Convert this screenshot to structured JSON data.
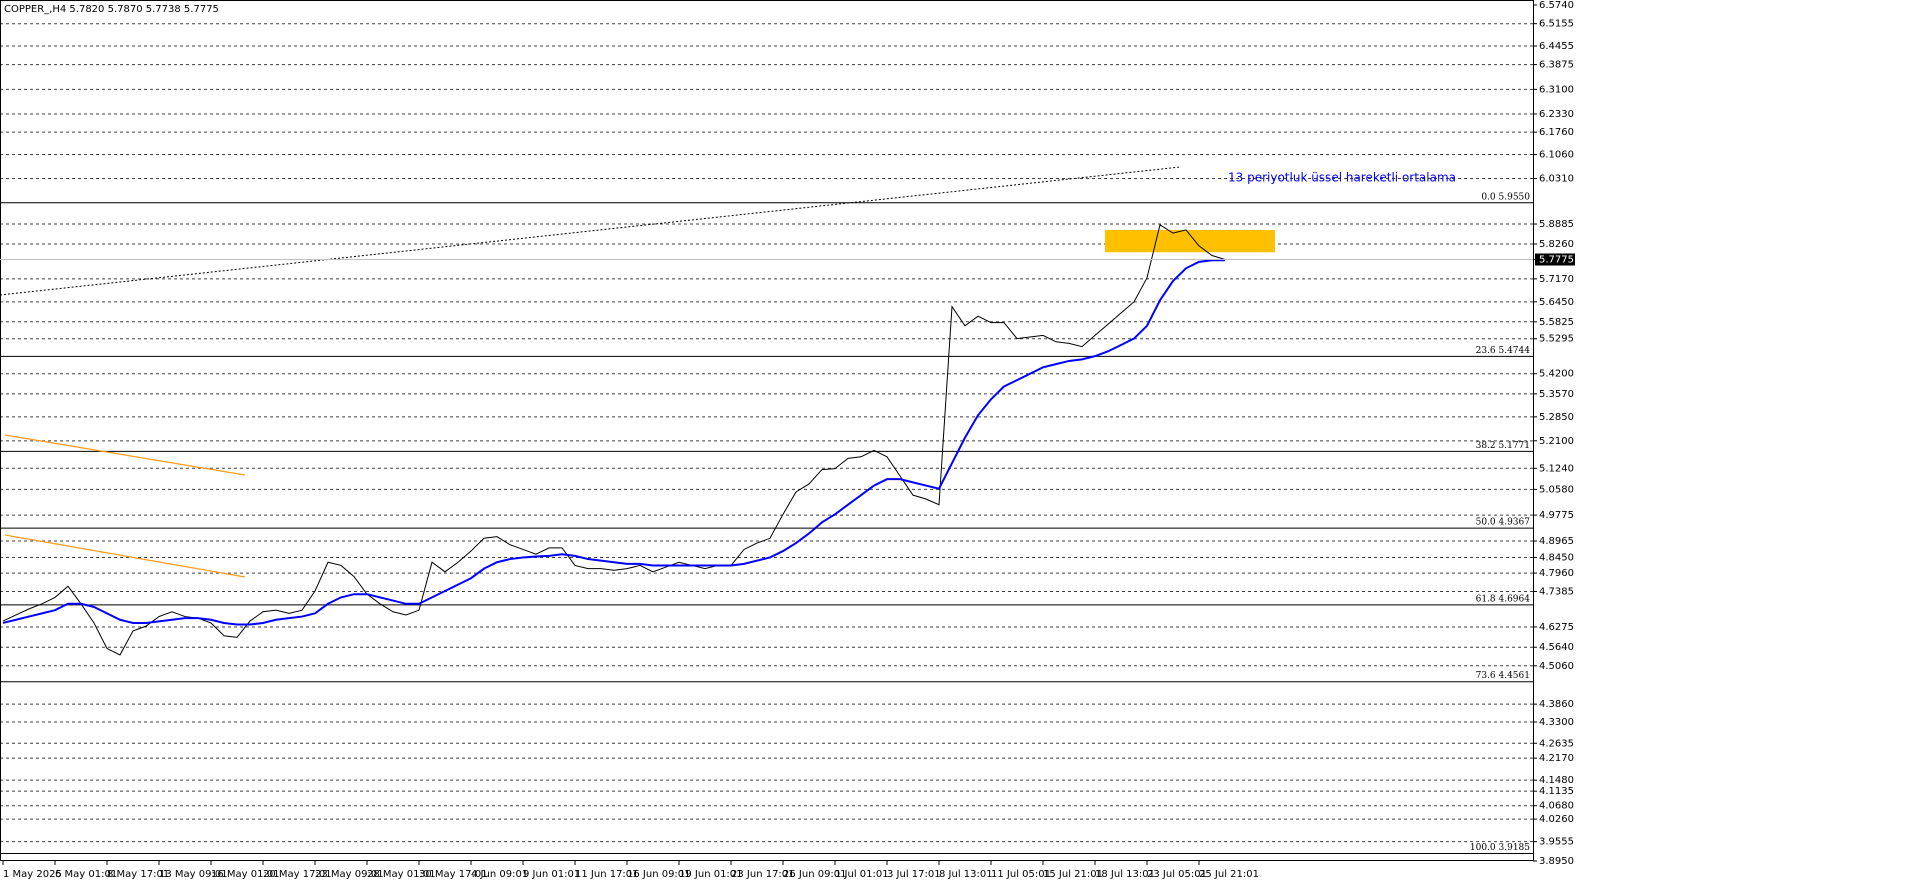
{
  "chart_data": {
    "type": "line",
    "title": "COPPER_,H4  5.7820 5.7870 5.7738 5.7775",
    "annotation": "13 periyotluk üssel hareketli ortalama",
    "categories": [
      "1 May 2025",
      null,
      null,
      null,
      "6 May 01:01",
      null,
      null,
      null,
      "8 May 17:01",
      null,
      null,
      null,
      "13 May 09:01",
      null,
      null,
      null,
      "16 May 01:01",
      null,
      null,
      null,
      "20 May 17:01",
      null,
      null,
      null,
      "23 May 09:01",
      null,
      null,
      null,
      "28 May 01:01",
      null,
      null,
      null,
      "30 May 17:01",
      null,
      null,
      null,
      "4 Jun 09:01",
      null,
      null,
      null,
      "9 Jun 01:01",
      null,
      null,
      null,
      "11 Jun 17:01",
      null,
      null,
      null,
      "16 Jun 09:01",
      null,
      null,
      null,
      "19 Jun 01:01",
      null,
      null,
      null,
      "23 Jun 17:01",
      null,
      null,
      null,
      "26 Jun 09:01",
      null,
      null,
      null,
      "1 Jul 01:01",
      null,
      null,
      null,
      "3 Jul 17:01",
      null,
      null,
      null,
      "8 Jul 13:01",
      null,
      null,
      null,
      "11 Jul 05:01",
      null,
      null,
      null,
      "15 Jul 21:01",
      null,
      null,
      null,
      "18 Jul 13:01",
      null,
      null,
      null,
      "23 Jul 05:01",
      null,
      null,
      null,
      "25 Jul 21:01",
      null,
      null
    ],
    "series": [
      {
        "name": "COPPER_",
        "color": "#000000",
        "values": [
          4.646,
          4.665,
          4.684,
          4.7,
          4.72,
          4.755,
          4.7,
          4.64,
          4.56,
          4.54,
          4.615,
          4.63,
          4.66,
          4.675,
          4.66,
          4.655,
          4.64,
          4.6,
          4.595,
          4.646,
          4.675,
          4.68,
          4.67,
          4.68,
          4.74,
          4.83,
          4.82,
          4.785,
          4.73,
          4.7,
          4.675,
          4.665,
          4.68,
          4.83,
          4.8,
          4.83,
          4.865,
          4.905,
          4.91,
          4.885,
          4.87,
          4.855,
          4.875,
          4.875,
          4.82,
          4.81,
          4.81,
          4.805,
          4.81,
          4.82,
          4.8,
          4.815,
          4.83,
          4.82,
          4.81,
          4.82,
          4.82,
          4.87,
          4.89,
          4.905,
          4.98,
          5.05,
          5.075,
          5.12,
          5.123,
          5.155,
          5.16,
          5.18,
          5.16,
          5.1,
          5.04,
          5.028,
          5.01,
          5.63,
          5.57,
          5.6,
          5.58,
          5.58,
          5.53,
          5.535,
          5.54,
          5.52,
          5.515,
          5.505,
          5.54,
          5.575,
          5.61,
          5.645,
          5.72,
          5.886,
          5.86,
          5.87,
          5.82,
          5.79,
          5.7775
        ]
      },
      {
        "name": "EMA 13",
        "color": "#0000ff",
        "values": [
          4.64,
          4.65,
          4.66,
          4.67,
          4.68,
          4.7,
          4.7,
          4.69,
          4.67,
          4.65,
          4.64,
          4.64,
          4.645,
          4.65,
          4.655,
          4.655,
          4.65,
          4.64,
          4.635,
          4.635,
          4.64,
          4.65,
          4.655,
          4.66,
          4.67,
          4.7,
          4.72,
          4.73,
          4.73,
          4.72,
          4.71,
          4.7,
          4.7,
          4.72,
          4.74,
          4.76,
          4.78,
          4.81,
          4.83,
          4.84,
          4.845,
          4.848,
          4.85,
          4.855,
          4.85,
          4.84,
          4.835,
          4.83,
          4.825,
          4.825,
          4.82,
          4.82,
          4.82,
          4.82,
          4.82,
          4.82,
          4.82,
          4.825,
          4.835,
          4.845,
          4.865,
          4.89,
          4.92,
          4.955,
          4.98,
          5.01,
          5.04,
          5.07,
          5.09,
          5.09,
          5.08,
          5.07,
          5.06,
          5.14,
          5.22,
          5.29,
          5.34,
          5.38,
          5.4,
          5.42,
          5.44,
          5.45,
          5.46,
          5.465,
          5.475,
          5.49,
          5.51,
          5.53,
          5.57,
          5.65,
          5.71,
          5.75,
          5.77,
          5.775,
          5.775
        ]
      }
    ],
    "ylim": [
      3.895,
      6.574
    ],
    "yticks": [
      {
        "value": 6.574,
        "label": "6.5740"
      },
      6.5155,
      6.4455,
      6.3875,
      {
        "value": 6.31,
        "label": "6.3100"
      },
      {
        "value": 6.233,
        "label": "6.2330"
      },
      {
        "value": 6.176,
        "label": "6.1760"
      },
      {
        "value": 6.106,
        "label": "6.1060"
      },
      {
        "value": 6.031,
        "label": "6.0310"
      },
      5.8885,
      {
        "value": 5.826,
        "label": "5.8260"
      },
      5.7775,
      {
        "value": 5.717,
        "label": "5.7170"
      },
      {
        "value": 5.645,
        "label": "5.6450"
      },
      5.5825,
      5.5295,
      {
        "value": 5.42,
        "label": "5.4200"
      },
      {
        "value": 5.357,
        "label": "5.3570"
      },
      {
        "value": 5.285,
        "label": "5.2850"
      },
      {
        "value": 5.21,
        "label": "5.2100"
      },
      {
        "value": 5.124,
        "label": "5.1240"
      },
      {
        "value": 5.058,
        "label": "5.0580"
      },
      4.9775,
      4.8965,
      {
        "value": 4.845,
        "label": "4.8450"
      },
      {
        "value": 4.796,
        "label": "4.7960"
      },
      4.7385,
      4.6275,
      {
        "value": 4.564,
        "label": "4.5640"
      },
      {
        "value": 4.506,
        "label": "4.5060"
      },
      {
        "value": 4.386,
        "label": "4.3860"
      },
      {
        "value": 4.33,
        "label": "4.3300"
      },
      4.2635,
      {
        "value": 4.217,
        "label": "4.2170"
      },
      {
        "value": 4.148,
        "label": "4.1480"
      },
      4.1135,
      {
        "value": 4.068,
        "label": "4.0680"
      },
      {
        "value": 4.026,
        "label": "4.0260"
      },
      3.9555,
      {
        "value": 3.895,
        "label": "3.8950"
      }
    ],
    "grid": true,
    "current_price": {
      "value": 5.7775,
      "label": "5.7775"
    },
    "fib_levels": [
      {
        "value": 5.955,
        "label": "0.0 5.9550"
      },
      {
        "value": 5.4744,
        "label": "23.6 5.4744"
      },
      {
        "value": 5.1771,
        "label": "38.2 5.1771"
      },
      {
        "value": 4.9367,
        "label": "50.0 4.9367"
      },
      {
        "value": 4.6964,
        "label": "61.8 4.6964"
      },
      {
        "value": 4.4561,
        "label": "73.6 4.4561"
      },
      {
        "value": 3.9185,
        "label": "100.0 3.9185"
      }
    ],
    "highlight_zone": {
      "y": [
        5.8,
        5.87
      ],
      "color": "#ffc000"
    }
  }
}
